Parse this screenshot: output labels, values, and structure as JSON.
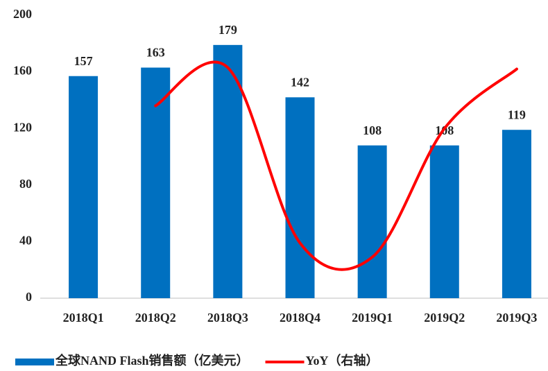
{
  "chart_data": {
    "type": "bar",
    "categories": [
      "2018Q1",
      "2018Q2",
      "2018Q3",
      "2018Q4",
      "2019Q1",
      "2019Q2",
      "2019Q3"
    ],
    "series": [
      {
        "name": "全球NAND Flash销售额（亿美元）",
        "color": "#0070c0",
        "values": [
          157,
          163,
          179,
          142,
          108,
          108,
          119
        ]
      },
      {
        "name": "YoY（右轴）",
        "color": "#ff0000",
        "type": "line",
        "axis": "y2",
        "smooth": true,
        "values": [
          null,
          136,
          163,
          39,
          29,
          120,
          162
        ]
      }
    ],
    "ylim": [
      0,
      200
    ],
    "yticks": [
      0,
      40,
      80,
      120,
      160,
      200
    ],
    "y2lim": [
      0,
      200
    ],
    "legend": "bottom"
  }
}
